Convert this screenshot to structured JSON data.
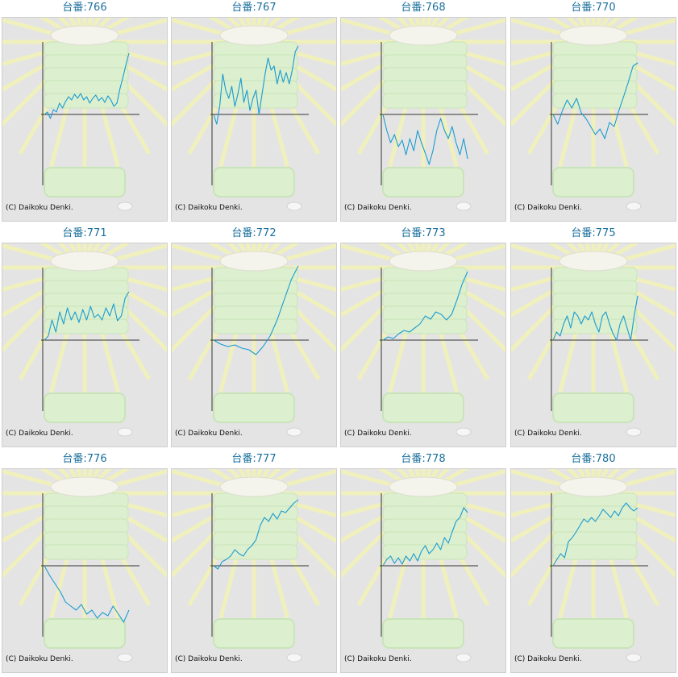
{
  "credit": "(C) Daikoku Denki.",
  "line_color": "#1a9cd0",
  "axis_color": "#333333",
  "chart_data": [
    {
      "type": "line",
      "title": "台番:766",
      "ylim": [
        -1,
        1
      ],
      "values": [
        0,
        0.03,
        -0.05,
        0.06,
        0.03,
        0.14,
        0.08,
        0.16,
        0.22,
        0.18,
        0.25,
        0.2,
        0.26,
        0.18,
        0.22,
        0.14,
        0.2,
        0.24,
        0.17,
        0.21,
        0.15,
        0.23,
        0.18,
        0.1,
        0.14,
        0.32,
        0.46,
        0.62,
        0.76
      ]
    },
    {
      "type": "line",
      "title": "台番:767",
      "ylim": [
        -1,
        1
      ],
      "values": [
        0,
        -0.12,
        0.1,
        0.5,
        0.3,
        0.2,
        0.35,
        0.1,
        0.25,
        0.45,
        0.15,
        0.3,
        0.05,
        0.2,
        0.3,
        0.0,
        0.25,
        0.5,
        0.7,
        0.55,
        0.6,
        0.38,
        0.55,
        0.4,
        0.52,
        0.38,
        0.55,
        0.78,
        0.85
      ]
    },
    {
      "type": "line",
      "title": "台番:768",
      "ylim": [
        -1,
        1
      ],
      "values": [
        0,
        -0.2,
        -0.35,
        -0.25,
        -0.4,
        -0.32,
        -0.5,
        -0.3,
        -0.45,
        -0.2,
        -0.35,
        -0.48,
        -0.62,
        -0.45,
        -0.2,
        -0.05,
        -0.2,
        -0.3,
        -0.15,
        -0.35,
        -0.5,
        -0.3,
        -0.55
      ]
    },
    {
      "type": "line",
      "title": "台番:770",
      "ylim": [
        -1,
        1
      ],
      "values": [
        0,
        -0.12,
        0.05,
        0.18,
        0.08,
        0.2,
        0.02,
        -0.05,
        -0.15,
        -0.25,
        -0.18,
        -0.3,
        -0.1,
        -0.15,
        0.05,
        0.22,
        0.4,
        0.6,
        0.64
      ]
    },
    {
      "type": "line",
      "title": "台番:771",
      "ylim": [
        -1,
        1
      ],
      "values": [
        0,
        0.05,
        0.25,
        0.1,
        0.35,
        0.2,
        0.4,
        0.25,
        0.35,
        0.22,
        0.38,
        0.25,
        0.42,
        0.28,
        0.32,
        0.25,
        0.4,
        0.3,
        0.45,
        0.24,
        0.3,
        0.52,
        0.6
      ]
    },
    {
      "type": "line",
      "title": "台番:772",
      "ylim": [
        -1,
        1
      ],
      "values": [
        0,
        -0.05,
        -0.08,
        -0.06,
        -0.1,
        -0.12,
        -0.18,
        -0.08,
        0.05,
        0.25,
        0.5,
        0.75,
        0.92
      ]
    },
    {
      "type": "line",
      "title": "台番:773",
      "ylim": [
        -1,
        1
      ],
      "values": [
        0,
        0.04,
        0.02,
        0.08,
        0.12,
        0.1,
        0.15,
        0.2,
        0.3,
        0.26,
        0.35,
        0.32,
        0.25,
        0.32,
        0.5,
        0.7,
        0.85
      ]
    },
    {
      "type": "line",
      "title": "台番:775",
      "ylim": [
        -1,
        1
      ],
      "values": [
        0,
        0.1,
        0.05,
        0.2,
        0.3,
        0.15,
        0.35,
        0.3,
        0.2,
        0.3,
        0.25,
        0.35,
        0.2,
        0.1,
        0.3,
        0.35,
        0.2,
        0.08,
        0.0,
        0.2,
        0.3,
        0.15,
        0.0,
        0.3,
        0.55
      ]
    },
    {
      "type": "line",
      "title": "台番:776",
      "ylim": [
        -1,
        1
      ],
      "values": [
        0,
        -0.12,
        -0.22,
        -0.32,
        -0.45,
        -0.5,
        -0.55,
        -0.48,
        -0.6,
        -0.55,
        -0.65,
        -0.58,
        -0.62,
        -0.5,
        -0.6,
        -0.7,
        -0.55
      ]
    },
    {
      "type": "line",
      "title": "台番:777",
      "ylim": [
        -1,
        1
      ],
      "values": [
        0,
        -0.04,
        0.05,
        0.08,
        0.12,
        0.2,
        0.15,
        0.12,
        0.2,
        0.25,
        0.32,
        0.5,
        0.6,
        0.55,
        0.65,
        0.58,
        0.68,
        0.66,
        0.72,
        0.78,
        0.82
      ]
    },
    {
      "type": "line",
      "title": "台番:778",
      "ylim": [
        -1,
        1
      ],
      "values": [
        0,
        0.08,
        0.12,
        0.03,
        0.1,
        0.02,
        0.12,
        0.06,
        0.15,
        0.06,
        0.18,
        0.25,
        0.15,
        0.2,
        0.28,
        0.2,
        0.35,
        0.28,
        0.42,
        0.55,
        0.6,
        0.72,
        0.66
      ]
    },
    {
      "type": "line",
      "title": "台番:780",
      "ylim": [
        -1,
        1
      ],
      "values": [
        0,
        0.08,
        0.15,
        0.1,
        0.3,
        0.35,
        0.42,
        0.5,
        0.58,
        0.54,
        0.6,
        0.55,
        0.62,
        0.7,
        0.65,
        0.6,
        0.68,
        0.62,
        0.72,
        0.78,
        0.72,
        0.68,
        0.72
      ]
    }
  ]
}
